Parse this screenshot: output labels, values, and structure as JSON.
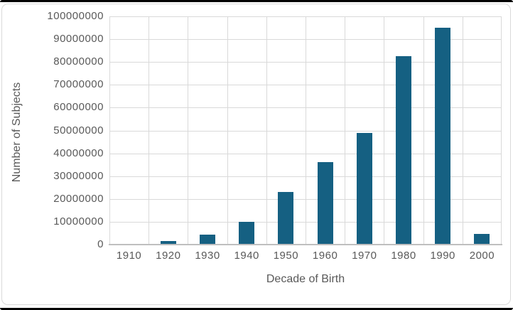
{
  "chart_data": {
    "type": "bar",
    "title": "",
    "categories": [
      "1910",
      "1920",
      "1930",
      "1940",
      "1950",
      "1960",
      "1970",
      "1980",
      "1990",
      "2000"
    ],
    "values": [
      0,
      1500000,
      4500000,
      10000000,
      23000000,
      36000000,
      49000000,
      82500000,
      95000000,
      4800000
    ],
    "xlabel": "Decade of Birth",
    "ylabel": "Number of Subjects",
    "ylim": [
      0,
      100000000
    ],
    "y_tick_step": 10000000,
    "y_tick_labels": [
      "0",
      "10000000",
      "20000000",
      "30000000",
      "40000000",
      "50000000",
      "60000000",
      "70000000",
      "80000000",
      "90000000",
      "100000000"
    ],
    "grid": true,
    "legend": "none",
    "bar_color": "#156082"
  },
  "colors": {
    "bar": "#156082",
    "gridline": "#D9D9D9",
    "axis_line": "#BFBFBF",
    "tick_text": "#595959",
    "frame_border": "#D9D9D9",
    "outer_edge": "#000000",
    "background": "#FFFFFF"
  }
}
